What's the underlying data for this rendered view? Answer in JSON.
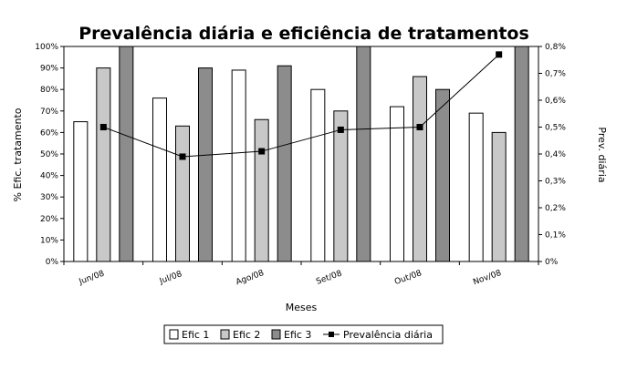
{
  "chart_data": {
    "type": "bar",
    "title": "Prevalência diária e eficiência de tratamentos",
    "xlabel": "Meses",
    "ylabel": "% Efic. tratamento",
    "y2label": "Prev. diária",
    "categories": [
      "Jun/08",
      "Jul/08",
      "Ago/08",
      "Set/08",
      "Out/08",
      "Nov/08"
    ],
    "ylim": [
      0,
      100
    ],
    "yticks": [
      "0%",
      "10%",
      "20%",
      "30%",
      "40%",
      "50%",
      "60%",
      "70%",
      "80%",
      "90%",
      "100%"
    ],
    "y2lim": [
      0,
      0.8
    ],
    "y2ticks": [
      "0%",
      "0,1%",
      "0,2%",
      "0,3%",
      "0,4%",
      "0,5%",
      "0,6%",
      "0,7%",
      "0,8%"
    ],
    "series": [
      {
        "name": "Efic 1",
        "type": "bar",
        "axis": "left",
        "color": "#ffffff",
        "values": [
          65,
          76,
          89,
          80,
          72,
          69
        ]
      },
      {
        "name": "Efic 2",
        "type": "bar",
        "axis": "left",
        "color": "#c8c8c8",
        "values": [
          90,
          63,
          66,
          70,
          86,
          60
        ]
      },
      {
        "name": "Efic 3",
        "type": "bar",
        "axis": "left",
        "color": "#8c8c8c",
        "values": [
          100,
          90,
          91,
          100,
          80,
          100
        ]
      },
      {
        "name": "Prevalência diária",
        "type": "line",
        "axis": "right",
        "color": "#000000",
        "values": [
          0.5,
          0.39,
          0.41,
          0.49,
          0.5,
          0.77
        ]
      }
    ],
    "legend_position": "bottom",
    "grid": false
  }
}
